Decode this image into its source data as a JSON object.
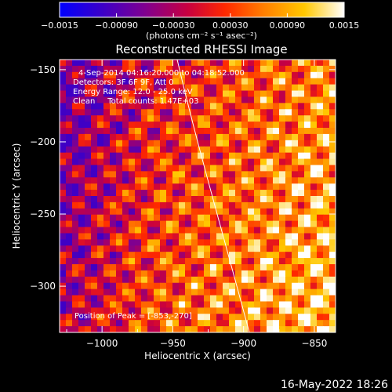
{
  "chart_data": {
    "type": "heatmap",
    "title": "Reconstructed RHESSI Image",
    "xlabel": "Heliocentric X (arcsec)",
    "ylabel": "Heliocentric Y (arcsec)",
    "xlim": [
      -1030,
      -835
    ],
    "ylim": [
      -332,
      -143
    ],
    "xticks": [
      {
        "value": -1000,
        "label": "−1000"
      },
      {
        "value": -950,
        "label": "−950"
      },
      {
        "value": -900,
        "label": "−900"
      },
      {
        "value": -850,
        "label": "−850"
      }
    ],
    "yticks": [
      {
        "value": -150,
        "label": "−150"
      },
      {
        "value": -200,
        "label": "−200"
      },
      {
        "value": -250,
        "label": "−250"
      },
      {
        "value": -300,
        "label": "−300"
      }
    ],
    "colorbar": {
      "range": [
        -0.0015,
        0.0015
      ],
      "ticks": [
        {
          "value": -0.0015,
          "label": "−0.0015"
        },
        {
          "value": -0.0009,
          "label": "−0.00090"
        },
        {
          "value": -0.0003,
          "label": "−0.00030"
        },
        {
          "value": 0.0003,
          "label": "0.00030"
        },
        {
          "value": 0.0009,
          "label": "0.00090"
        },
        {
          "value": 0.0015,
          "label": "0.0015"
        }
      ],
      "unit_label": "(photons cm⁻² s⁻¹ asec⁻²)",
      "colormap": [
        "#0000ff",
        "#3c00c8",
        "#800090",
        "#c80040",
        "#ff2800",
        "#ff8000",
        "#ffc800",
        "#ffffff"
      ]
    },
    "annotations": [
      "4-Sep-2014 04:16:20.000 to 04:18:52.000",
      "Detectors: 3F 6F 9F, Att 0",
      "Energy Range: 12.0 - 25.0 keV",
      "Clean     Total counts: 1.47E+03"
    ],
    "peak_label": "Position of Peak = [-853,-270]",
    "limb_color": "#ffffff"
  },
  "timestamp": "16-May-2022 18:26"
}
